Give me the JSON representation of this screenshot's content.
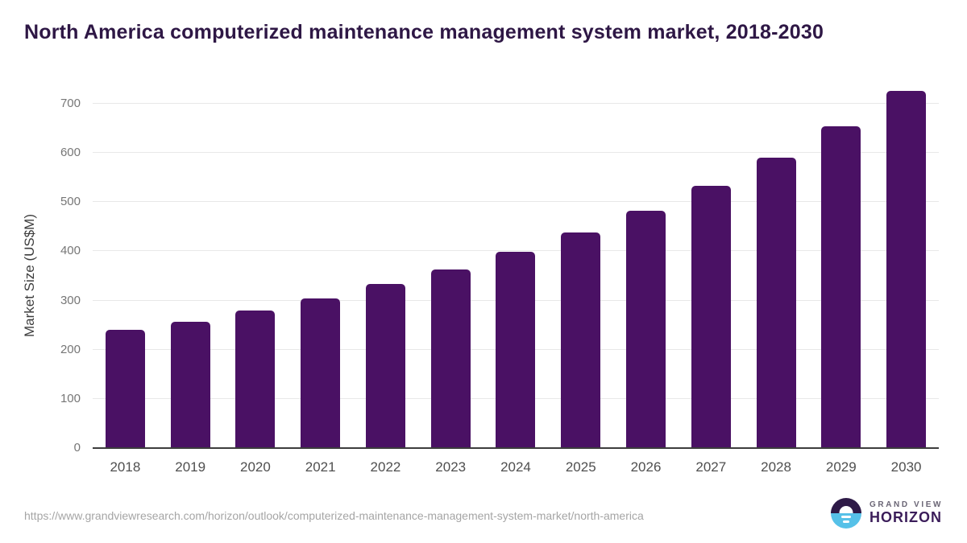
{
  "chart_data": {
    "type": "bar",
    "title": "North America computerized maintenance management system market, 2018-2030",
    "categories": [
      "2018",
      "2019",
      "2020",
      "2021",
      "2022",
      "2023",
      "2024",
      "2025",
      "2026",
      "2027",
      "2028",
      "2029",
      "2030"
    ],
    "values": [
      240,
      257,
      280,
      305,
      333,
      363,
      399,
      438,
      482,
      533,
      590,
      655,
      727
    ],
    "xlabel": "",
    "ylabel": "Market Size (US$M)",
    "ylim": [
      0,
      700
    ],
    "ytick_step": 100,
    "yticks": [
      0,
      100,
      200,
      300,
      400,
      500,
      600,
      700
    ],
    "grid": true,
    "legend_position": "none",
    "bar_color": "#4a1164"
  },
  "footer": {
    "source_url": "https://www.grandviewresearch.com/horizon/outlook/computerized-maintenance-management-system-market/north-america",
    "logo": {
      "line1": "GRAND VIEW",
      "line2": "HORIZON",
      "icon": "horizon-sunrise-icon"
    }
  },
  "colors": {
    "bar": "#4a1164",
    "title_text": "#2e1745",
    "gridline": "#e8e8e8",
    "axis_line": "#3d3d3d",
    "tick_text": "#767676",
    "logo_dark": "#2e1a47",
    "logo_blue": "#56c1e8"
  }
}
